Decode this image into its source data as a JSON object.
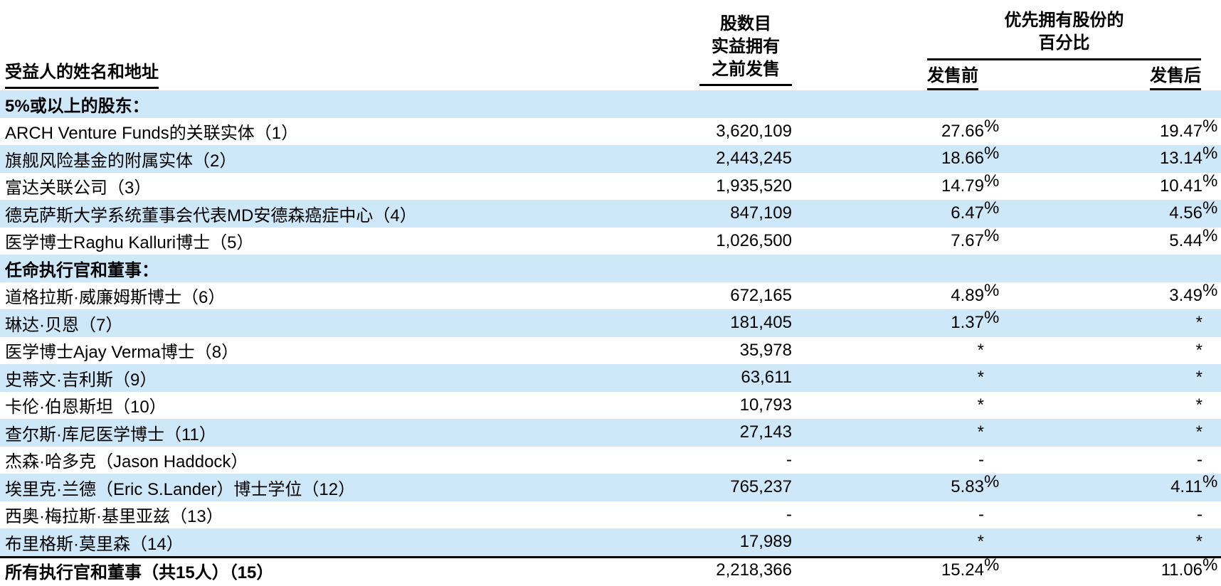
{
  "colors": {
    "row_stripe": "#cfe8f9",
    "text": "#000000",
    "rule": "#000000"
  },
  "header": {
    "name_col": "受益人的姓名和地址",
    "shares_col_lines": [
      "股数目",
      "实益拥有",
      "之前发售"
    ],
    "pct_group_lines": [
      "优先拥有股份的",
      "百分比"
    ],
    "pre_col": "发售前",
    "post_col": "发售后"
  },
  "table": {
    "rows": [
      {
        "type": "section",
        "name": "5%或以上的股东：",
        "shares": "",
        "pre": "",
        "post": ""
      },
      {
        "type": "data",
        "name": "ARCH Venture Funds的关联实体（1）",
        "shares": "3,620,109",
        "pre": "27.66%",
        "post": "19.47%"
      },
      {
        "type": "data",
        "name": "旗舰风险基金的附属实体（2）",
        "shares": "2,443,245",
        "pre": "18.66%",
        "post": "13.14%"
      },
      {
        "type": "data",
        "name": "富达关联公司（3）",
        "shares": "1,935,520",
        "pre": "14.79%",
        "post": "10.41%"
      },
      {
        "type": "data",
        "name": "德克萨斯大学系统董事会代表MD安德森癌症中心（4）",
        "shares": "847,109",
        "pre": "6.47%",
        "post": "4.56%"
      },
      {
        "type": "data",
        "name": "医学博士Raghu Kalluri博士（5）",
        "shares": "1,026,500",
        "pre": "7.67%",
        "post": "5.44%"
      },
      {
        "type": "section",
        "name": "任命执行官和董事：",
        "shares": "",
        "pre": "",
        "post": ""
      },
      {
        "type": "data",
        "name": "道格拉斯·威廉姆斯博士（6）",
        "shares": "672,165",
        "pre": "4.89%",
        "post": "3.49%"
      },
      {
        "type": "data",
        "name": "琳达·贝恩（7）",
        "shares": "181,405",
        "pre": "1.37%",
        "post": "*"
      },
      {
        "type": "data",
        "name": "医学博士Ajay Verma博士（8）",
        "shares": "35,978",
        "pre": "*",
        "post": "*"
      },
      {
        "type": "data",
        "name": "史蒂文·吉利斯（9）",
        "shares": "63,611",
        "pre": "*",
        "post": "*"
      },
      {
        "type": "data",
        "name": "卡伦·伯恩斯坦（10）",
        "shares": "10,793",
        "pre": "*",
        "post": "*"
      },
      {
        "type": "data",
        "name": "查尔斯·库尼医学博士（11）",
        "shares": "27,143",
        "pre": "*",
        "post": "*"
      },
      {
        "type": "data",
        "name": "杰森·哈多克（Jason Haddock）",
        "shares": "-",
        "pre": "-",
        "post": "-"
      },
      {
        "type": "data",
        "name": "埃里克·兰德（Eric S.Lander）博士学位（12）",
        "shares": "765,237",
        "pre": "5.83%",
        "post": "4.11%"
      },
      {
        "type": "data",
        "name": "西奥·梅拉斯·基里亚兹（13）",
        "shares": "-",
        "pre": "-",
        "post": "-"
      },
      {
        "type": "data",
        "name": "布里格斯·莫里森（14）",
        "shares": "17,989",
        "pre": "*",
        "post": "*"
      },
      {
        "type": "total",
        "name": "所有执行官和董事（共15人）（15）",
        "shares": "2,218,366",
        "pre": "15.24%",
        "post": "11.06%"
      }
    ]
  }
}
